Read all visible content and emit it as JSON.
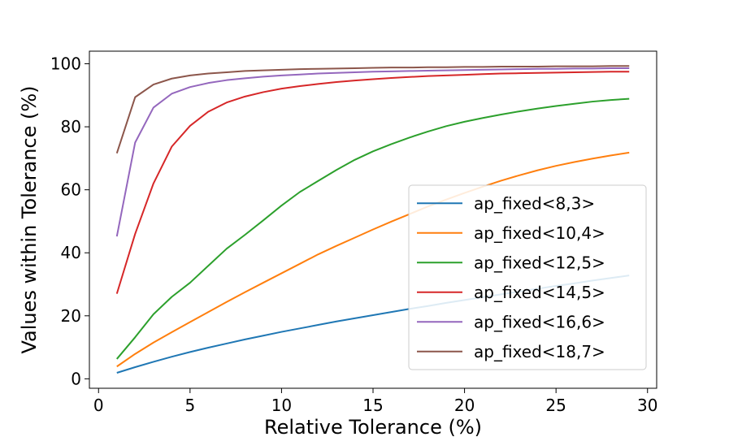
{
  "chart_data": {
    "type": "line",
    "title": "",
    "xlabel": "Relative Tolerance (%)",
    "ylabel": "Values within Tolerance (%)",
    "xlim": [
      -0.5,
      30.5
    ],
    "ylim": [
      -3,
      104
    ],
    "xticks": [
      0,
      5,
      10,
      15,
      20,
      25,
      30
    ],
    "yticks": [
      0,
      20,
      40,
      60,
      80,
      100
    ],
    "grid": false,
    "legend_position": "lower-right",
    "x": [
      1,
      2,
      3,
      4,
      5,
      6,
      7,
      8,
      9,
      10,
      11,
      12,
      13,
      14,
      15,
      16,
      17,
      18,
      19,
      20,
      21,
      22,
      23,
      24,
      25,
      26,
      27,
      28,
      29
    ],
    "series": [
      {
        "name": "ap_fixed<8,3>",
        "color": "#1f77b4",
        "values": [
          1.9,
          3.7,
          5.4,
          7.0,
          8.5,
          9.9,
          11.2,
          12.5,
          13.7,
          14.9,
          16.0,
          17.1,
          18.2,
          19.2,
          20.2,
          21.2,
          22.2,
          23.1,
          24.1,
          25.0,
          25.9,
          26.8,
          27.7,
          28.6,
          29.5,
          30.3,
          31.2,
          32.0,
          32.8
        ]
      },
      {
        "name": "ap_fixed<10,4>",
        "color": "#ff7f0e",
        "values": [
          3.9,
          7.9,
          11.5,
          14.8,
          18.0,
          21.2,
          24.4,
          27.5,
          30.5,
          33.5,
          36.5,
          39.5,
          42.2,
          44.8,
          47.4,
          49.9,
          52.3,
          54.7,
          56.9,
          59.0,
          61.0,
          62.9,
          64.6,
          66.2,
          67.6,
          68.8,
          69.9,
          70.9,
          71.8
        ]
      },
      {
        "name": "ap_fixed<12,5>",
        "color": "#2ca02c",
        "values": [
          6.3,
          13.2,
          20.5,
          26.0,
          30.5,
          35.9,
          41.3,
          45.7,
          50.3,
          55.0,
          59.3,
          62.8,
          66.3,
          69.5,
          72.2,
          74.5,
          76.6,
          78.5,
          80.2,
          81.6,
          82.8,
          83.9,
          84.9,
          85.8,
          86.6,
          87.3,
          88.0,
          88.5,
          88.9
        ]
      },
      {
        "name": "ap_fixed<14,5>",
        "color": "#d62728",
        "values": [
          27.0,
          46.0,
          62.0,
          73.7,
          80.3,
          84.8,
          87.7,
          89.6,
          91.0,
          92.1,
          92.9,
          93.6,
          94.2,
          94.7,
          95.1,
          95.5,
          95.8,
          96.1,
          96.3,
          96.5,
          96.7,
          96.9,
          97.0,
          97.1,
          97.2,
          97.3,
          97.4,
          97.5,
          97.5
        ]
      },
      {
        "name": "ap_fixed<16,6>",
        "color": "#9467bd",
        "values": [
          45.2,
          75.0,
          86.1,
          90.5,
          92.6,
          93.9,
          94.8,
          95.4,
          95.9,
          96.3,
          96.6,
          96.9,
          97.1,
          97.3,
          97.5,
          97.6,
          97.7,
          97.8,
          97.9,
          98.0,
          98.1,
          98.2,
          98.3,
          98.4,
          98.4,
          98.5,
          98.5,
          98.6,
          98.6
        ]
      },
      {
        "name": "ap_fixed<18,7>",
        "color": "#8c564b",
        "values": [
          71.6,
          89.4,
          93.4,
          95.3,
          96.3,
          96.9,
          97.3,
          97.7,
          97.9,
          98.1,
          98.3,
          98.4,
          98.5,
          98.6,
          98.7,
          98.8,
          98.8,
          98.9,
          98.9,
          99.0,
          99.0,
          99.1,
          99.1,
          99.1,
          99.2,
          99.2,
          99.2,
          99.3,
          99.3
        ]
      }
    ]
  }
}
